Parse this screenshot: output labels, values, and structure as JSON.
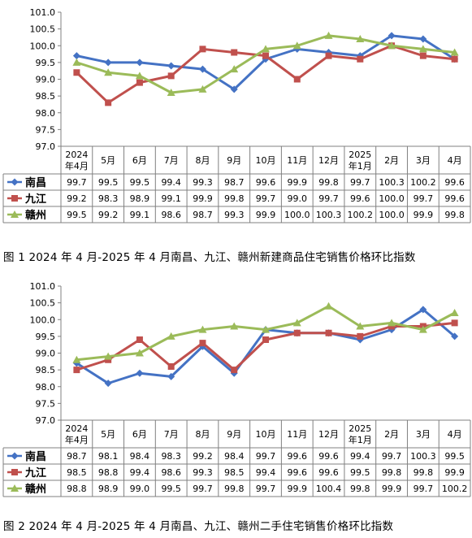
{
  "chart_data": [
    {
      "type": "line",
      "categories": [
        "2024\n年4月",
        "5月",
        "6月",
        "7月",
        "8月",
        "9月",
        "10月",
        "11月",
        "12月",
        "2025\n年1月",
        "2月",
        "3月",
        "4月"
      ],
      "series": [
        {
          "name": "南昌",
          "values": [
            99.7,
            99.5,
            99.5,
            99.4,
            99.3,
            98.7,
            99.6,
            99.9,
            99.8,
            99.7,
            100.3,
            100.2,
            99.6
          ],
          "labels": [
            "99.7",
            "99.5",
            "99.5",
            "99.4",
            "99.3",
            "98.7",
            "99.6",
            "99.9",
            "99.8",
            "99.7",
            "100.3",
            "100.2",
            "99.6"
          ],
          "color": "#4472C4",
          "marker": "diamond"
        },
        {
          "name": "九江",
          "values": [
            99.2,
            98.3,
            98.9,
            99.1,
            99.9,
            99.8,
            99.7,
            99.0,
            99.7,
            99.6,
            100.0,
            99.7,
            99.6
          ],
          "labels": [
            "99.2",
            "98.3",
            "98.9",
            "99.1",
            "99.9",
            "99.8",
            "99.7",
            "99.0",
            "99.7",
            "99.6",
            "100.0",
            "99.7",
            "99.6"
          ],
          "color": "#C0504D",
          "marker": "square"
        },
        {
          "name": "赣州",
          "values": [
            99.5,
            99.2,
            99.1,
            98.6,
            98.7,
            99.3,
            99.9,
            100.0,
            100.3,
            100.2,
            100.0,
            99.9,
            99.8
          ],
          "labels": [
            "99.5",
            "99.2",
            "99.1",
            "98.6",
            "98.7",
            "99.3",
            "99.9",
            "100.0",
            "100.3",
            "100.2",
            "100.0",
            "99.9",
            "99.8"
          ],
          "color": "#9BBB59",
          "marker": "triangle"
        }
      ],
      "ylim": [
        97.0,
        101.0
      ],
      "yticks": [
        "97.0",
        "97.5",
        "98.0",
        "98.5",
        "99.0",
        "99.5",
        "100.0",
        "100.5",
        "101.0"
      ],
      "grid": false,
      "legend": "data-table",
      "caption": "图 1  2024 年 4 月-2025 年 4 月南昌、九江、赣州新建商品住宅销售价格环比指数"
    },
    {
      "type": "line",
      "categories": [
        "2024\n年4月",
        "5月",
        "6月",
        "7月",
        "8月",
        "9月",
        "10月",
        "11月",
        "12月",
        "2025\n年1月",
        "2月",
        "3月",
        "4月"
      ],
      "series": [
        {
          "name": "南昌",
          "values": [
            98.7,
            98.1,
            98.4,
            98.3,
            99.2,
            98.4,
            99.7,
            99.6,
            99.6,
            99.4,
            99.7,
            100.3,
            99.5
          ],
          "labels": [
            "98.7",
            "98.1",
            "98.4",
            "98.3",
            "99.2",
            "98.4",
            "99.7",
            "99.6",
            "99.6",
            "99.4",
            "99.7",
            "100.3",
            "99.5"
          ],
          "color": "#4472C4",
          "marker": "diamond"
        },
        {
          "name": "九江",
          "values": [
            98.5,
            98.8,
            99.4,
            98.6,
            99.3,
            98.5,
            99.4,
            99.6,
            99.6,
            99.5,
            99.8,
            99.8,
            99.9
          ],
          "labels": [
            "98.5",
            "98.8",
            "99.4",
            "98.6",
            "99.3",
            "98.5",
            "99.4",
            "99.6",
            "99.6",
            "99.5",
            "99.8",
            "99.8",
            "99.9"
          ],
          "color": "#C0504D",
          "marker": "square"
        },
        {
          "name": "赣州",
          "values": [
            98.8,
            98.9,
            99.0,
            99.5,
            99.7,
            99.8,
            99.7,
            99.9,
            100.4,
            99.8,
            99.9,
            99.7,
            100.2
          ],
          "labels": [
            "98.8",
            "98.9",
            "99.0",
            "99.5",
            "99.7",
            "99.8",
            "99.7",
            "99.9",
            "100.4",
            "99.8",
            "99.9",
            "99.7",
            "100.2"
          ],
          "color": "#9BBB59",
          "marker": "triangle"
        }
      ],
      "ylim": [
        97.0,
        101.0
      ],
      "yticks": [
        "97.0",
        "97.5",
        "98.0",
        "98.5",
        "99.0",
        "99.5",
        "100.0",
        "100.5",
        "101.0"
      ],
      "grid": false,
      "legend": "data-table",
      "caption": "图 2  2024 年 4 月-2025 年 4 月南昌、九江、赣州二手住宅销售价格环比指数"
    }
  ]
}
